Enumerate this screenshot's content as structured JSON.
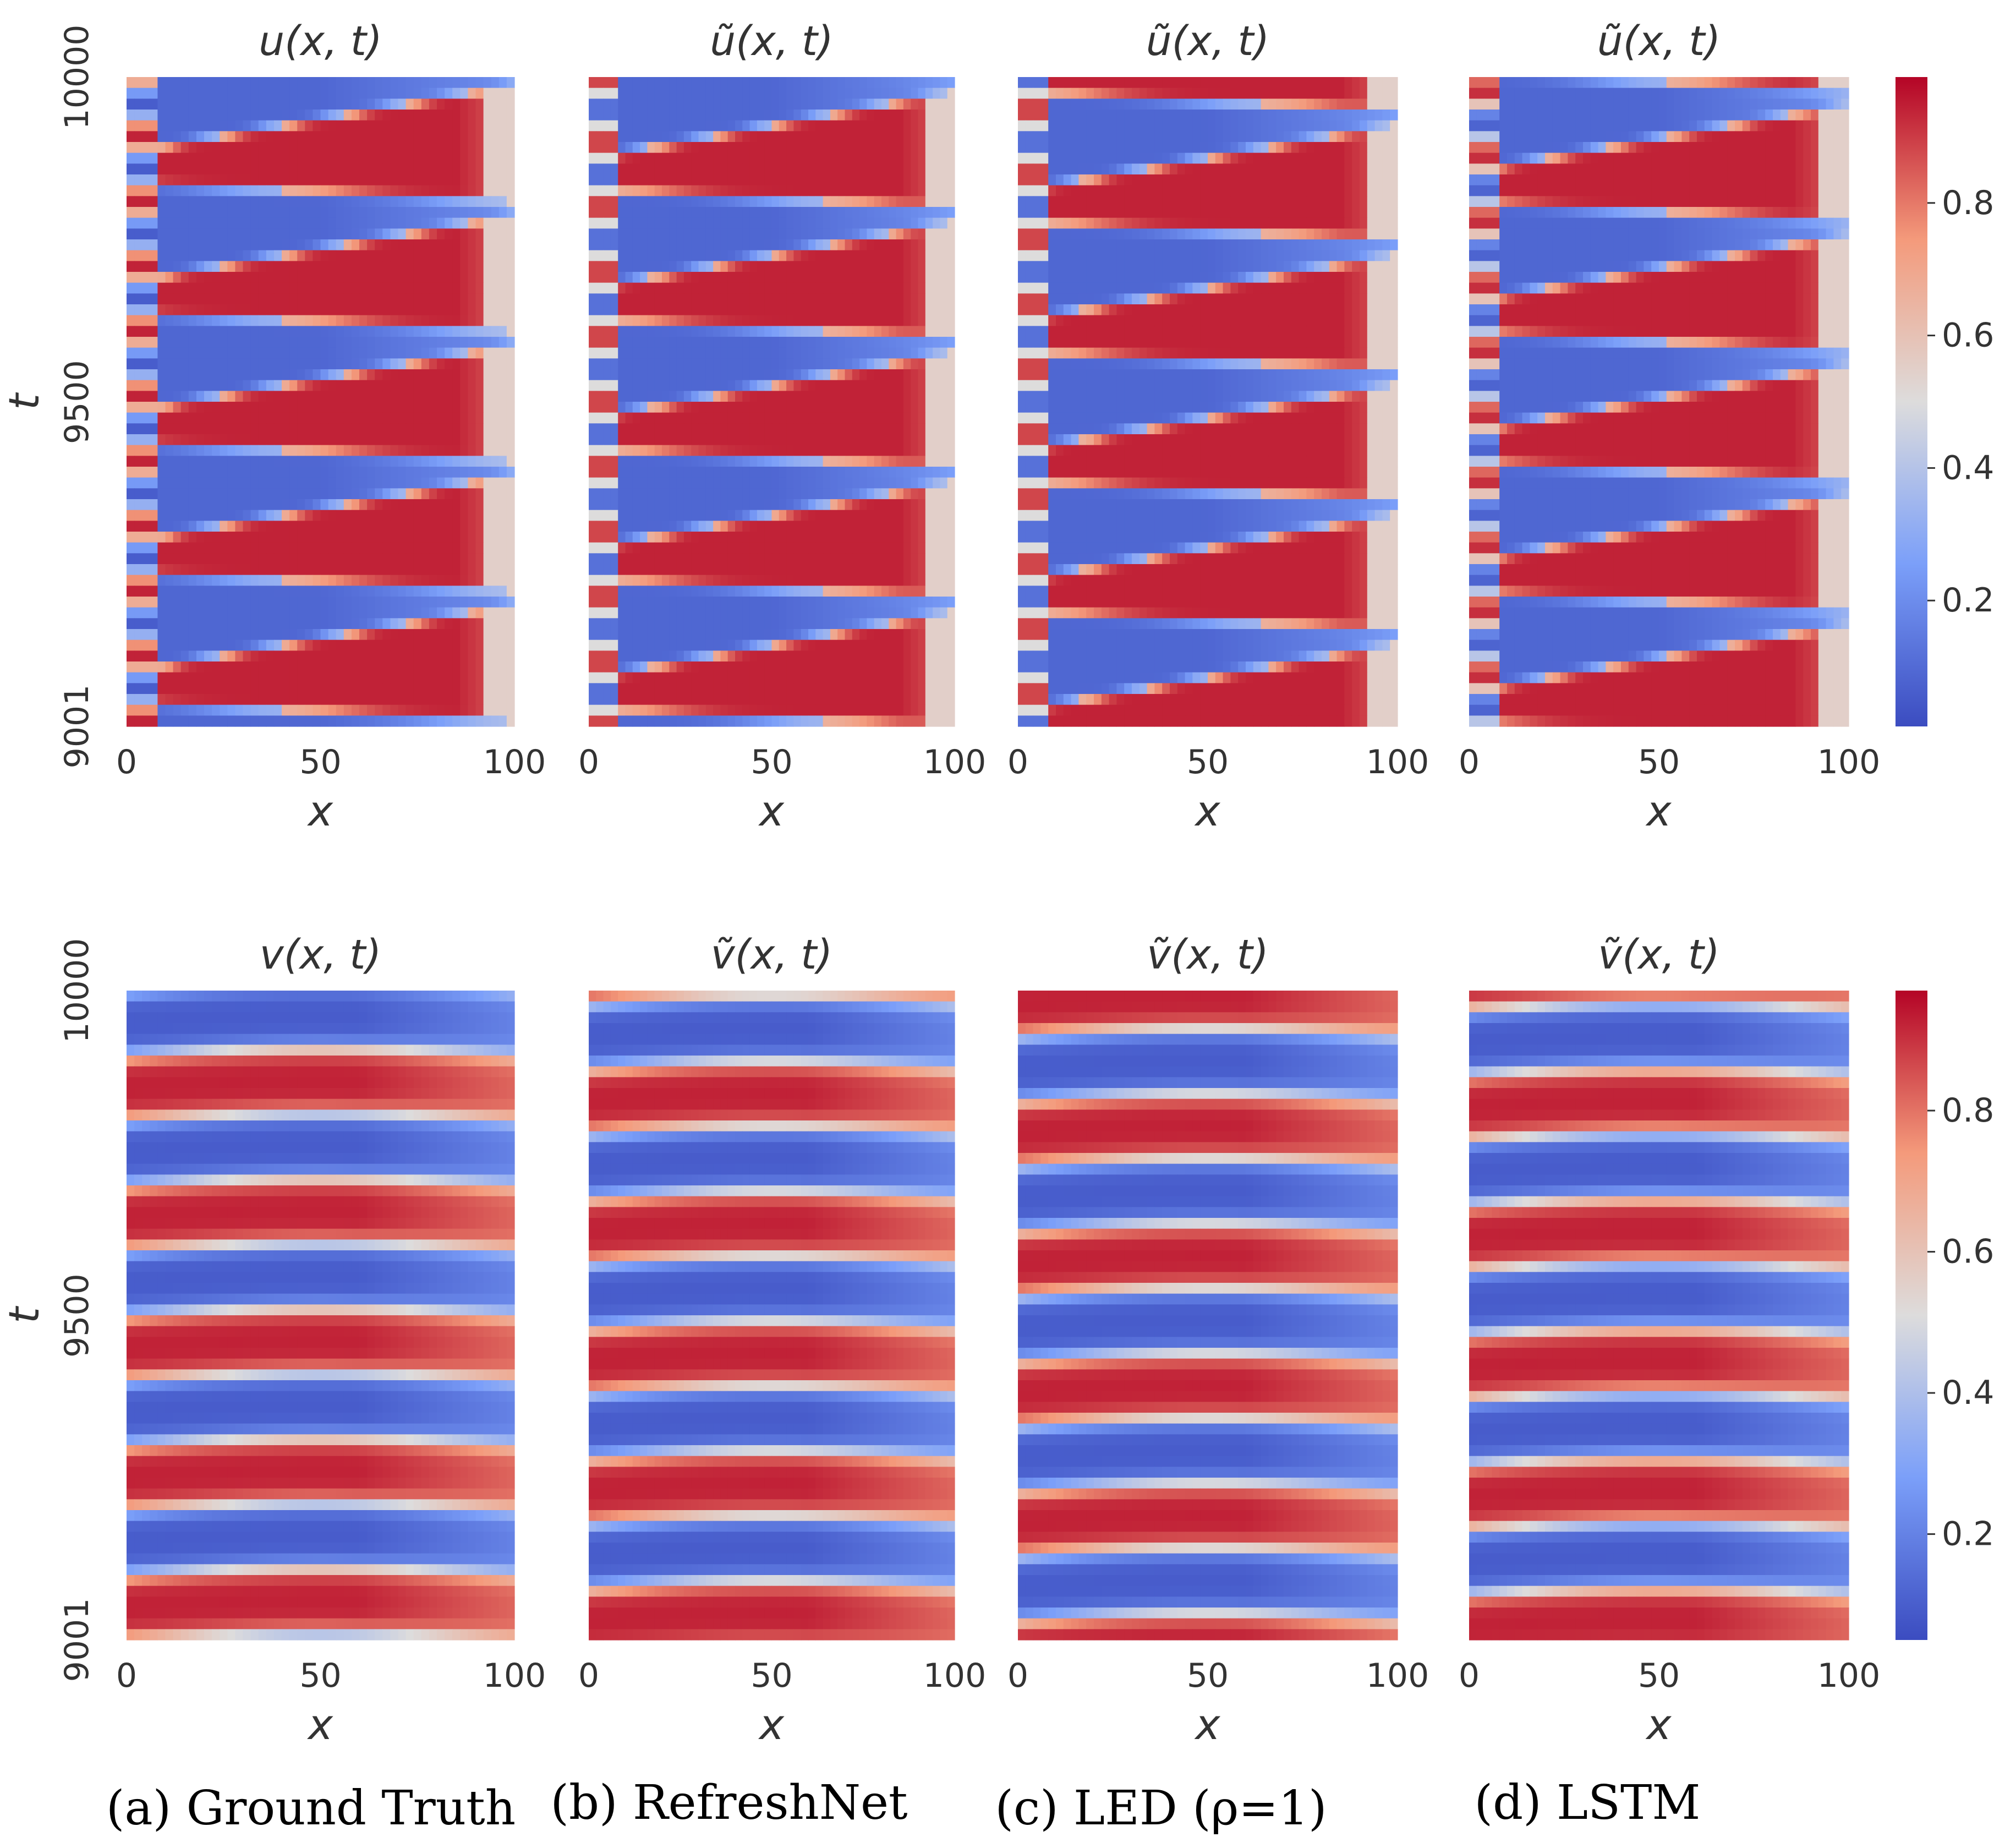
{
  "figure": {
    "top_row_variable": "u",
    "bottom_row_variable": "v",
    "colors": {
      "low": "#3b4cc0",
      "mid": "#dddcdc",
      "high": "#b40426",
      "axis": "#333333"
    },
    "captions": [
      "(a) Ground Truth",
      "(b) RefreshNet",
      "(c) LED (ρ=1)",
      "(d) LSTM"
    ]
  },
  "chart_data": [
    {
      "type": "heatmap",
      "id": "u-ground-truth",
      "title": "u(x, t)",
      "xlabel": "x",
      "ylabel": "t",
      "xticks": [
        "0",
        "50",
        "100"
      ],
      "yticks": [
        "9001",
        "9500",
        "10000"
      ],
      "xlim": [
        0,
        100
      ],
      "ylim": [
        9001,
        10000
      ],
      "field": "u",
      "model": "Ground Truth",
      "colorbar": false
    },
    {
      "type": "heatmap",
      "id": "u-refreshnet",
      "title": "ũ(x, t)",
      "xlabel": "x",
      "ylabel": "",
      "xticks": [
        "0",
        "50",
        "100"
      ],
      "yticks": [],
      "xlim": [
        0,
        100
      ],
      "ylim": [
        9001,
        10000
      ],
      "field": "u",
      "model": "RefreshNet",
      "colorbar": false
    },
    {
      "type": "heatmap",
      "id": "u-led",
      "title": "ũ(x, t)",
      "xlabel": "x",
      "ylabel": "",
      "xticks": [
        "0",
        "50",
        "100"
      ],
      "yticks": [],
      "xlim": [
        0,
        100
      ],
      "ylim": [
        9001,
        10000
      ],
      "field": "u",
      "model": "LED (ρ=1)",
      "colorbar": false
    },
    {
      "type": "heatmap",
      "id": "u-lstm",
      "title": "ũ(x, t)",
      "xlabel": "x",
      "ylabel": "",
      "xticks": [
        "0",
        "50",
        "100"
      ],
      "yticks": [],
      "xlim": [
        0,
        100
      ],
      "ylim": [
        9001,
        10000
      ],
      "field": "u",
      "model": "LSTM",
      "colorbar": true,
      "colorbar_ticks": [
        "0.2",
        "0.4",
        "0.6",
        "0.8"
      ],
      "colorbar_range": [
        0.01,
        0.99
      ]
    },
    {
      "type": "heatmap",
      "id": "v-ground-truth",
      "title": "v(x, t)",
      "xlabel": "x",
      "ylabel": "t",
      "xticks": [
        "0",
        "50",
        "100"
      ],
      "yticks": [
        "9001",
        "9500",
        "10000"
      ],
      "xlim": [
        0,
        100
      ],
      "ylim": [
        9001,
        10000
      ],
      "field": "v",
      "model": "Ground Truth",
      "colorbar": false
    },
    {
      "type": "heatmap",
      "id": "v-refreshnet",
      "title": "ṽ(x, t)",
      "xlabel": "x",
      "ylabel": "",
      "xticks": [
        "0",
        "50",
        "100"
      ],
      "yticks": [],
      "xlim": [
        0,
        100
      ],
      "ylim": [
        9001,
        10000
      ],
      "field": "v",
      "model": "RefreshNet",
      "colorbar": false
    },
    {
      "type": "heatmap",
      "id": "v-led",
      "title": "ṽ(x, t)",
      "xlabel": "x",
      "ylabel": "",
      "xticks": [
        "0",
        "50",
        "100"
      ],
      "yticks": [],
      "xlim": [
        0,
        100
      ],
      "ylim": [
        9001,
        10000
      ],
      "field": "v",
      "model": "LED (ρ=1)",
      "colorbar": false
    },
    {
      "type": "heatmap",
      "id": "v-lstm",
      "title": "ṽ(x, t)",
      "xlabel": "x",
      "ylabel": "",
      "xticks": [
        "0",
        "50",
        "100"
      ],
      "yticks": [],
      "xlim": [
        0,
        100
      ],
      "ylim": [
        9001,
        10000
      ],
      "field": "v",
      "model": "LSTM",
      "colorbar": true,
      "colorbar_ticks": [
        "0.2",
        "0.4",
        "0.6",
        "0.8"
      ],
      "colorbar_range": [
        0.05,
        0.97
      ]
    }
  ]
}
